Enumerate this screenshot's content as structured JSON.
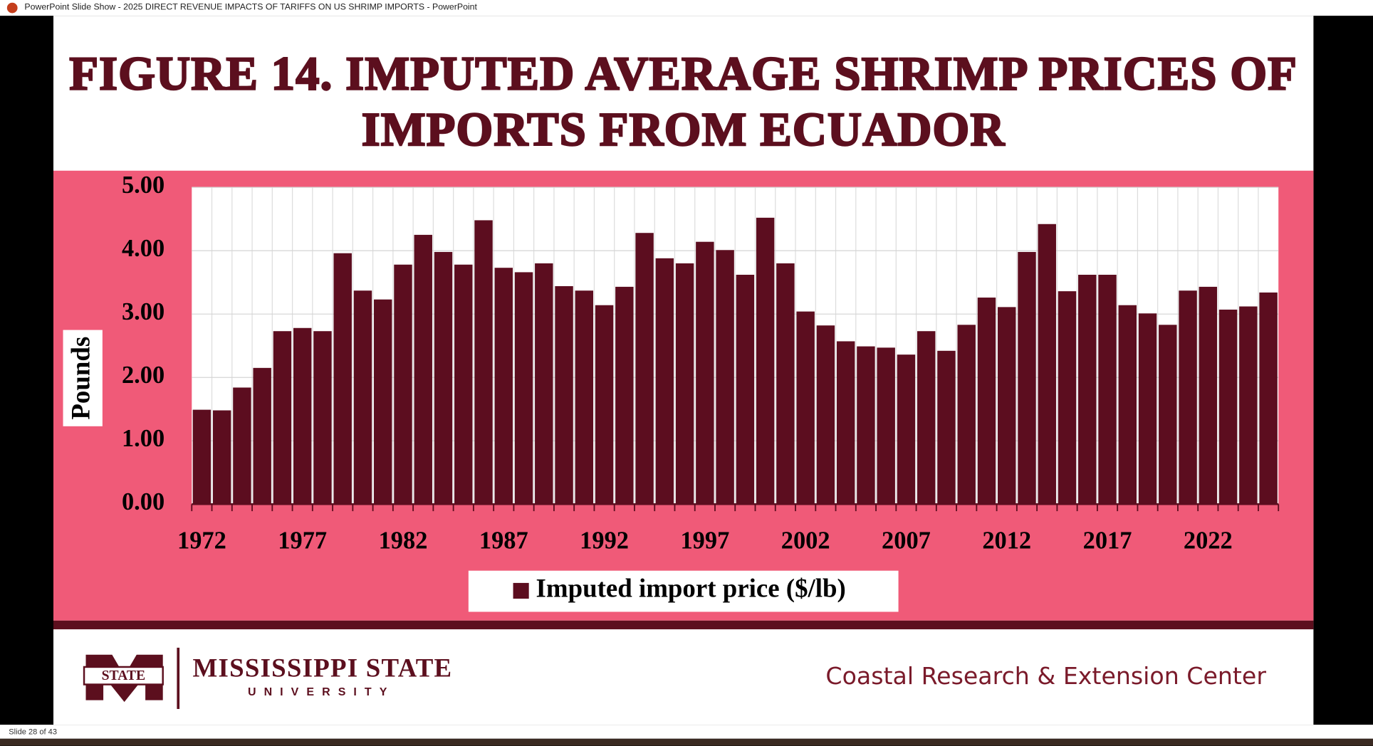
{
  "window": {
    "title": "PowerPoint Slide Show  -  2025 DIRECT REVENUE IMPACTS OF TARIFFS ON US SHRIMP IMPORTS - PowerPoint"
  },
  "status": "Slide 28 of 43",
  "footer": {
    "university": "MISSISSIPPI STATE",
    "subtitle": "UNIVERSITY",
    "badge": "STATE",
    "center": "Coastal Research & Extension Center"
  },
  "chart_data": {
    "type": "bar",
    "title": "FIGURE 14. IMPUTED AVERAGE SHRIMP PRICES OF IMPORTS FROM ECUADOR",
    "ylabel": "Pounds",
    "categories": [
      "1972",
      null,
      null,
      null,
      null,
      "1977",
      null,
      null,
      null,
      null,
      "1982",
      null,
      null,
      null,
      null,
      "1987",
      null,
      null,
      null,
      null,
      "1992",
      null,
      null,
      null,
      null,
      "1997",
      null,
      null,
      null,
      null,
      "2002",
      null,
      null,
      null,
      null,
      "2007",
      null,
      null,
      null,
      null,
      "2012",
      null,
      null,
      null,
      null,
      "2017",
      null,
      null,
      null,
      null,
      "2022",
      null,
      null,
      null
    ],
    "series": [
      {
        "name": "Imputed import price ($/lb)",
        "color": "#5c0d1f",
        "values": [
          1.49,
          1.48,
          1.84,
          2.15,
          2.73,
          2.78,
          2.73,
          3.96,
          3.37,
          3.23,
          3.78,
          4.25,
          3.98,
          3.78,
          4.48,
          3.73,
          3.66,
          3.8,
          3.44,
          3.37,
          3.14,
          3.43,
          4.28,
          3.88,
          3.8,
          4.14,
          4.01,
          3.62,
          4.52,
          3.8,
          3.04,
          2.82,
          2.57,
          2.49,
          2.47,
          2.36,
          2.73,
          2.42,
          2.83,
          3.26,
          3.11,
          3.98,
          4.42,
          3.36,
          3.62,
          3.62,
          3.14,
          3.01,
          2.83,
          3.37,
          3.43,
          3.07,
          3.12,
          3.34
        ]
      }
    ],
    "ylim": [
      0,
      5
    ],
    "yticks": [
      {
        "value": 0,
        "label": "0.00"
      },
      {
        "value": 1,
        "label": "1.00"
      },
      {
        "value": 2,
        "label": "2.00"
      },
      {
        "value": 3,
        "label": "3.00"
      },
      {
        "value": 4,
        "label": "4.00"
      },
      {
        "value": 5,
        "label": "5.00"
      }
    ],
    "grid": true,
    "legend": "bottom"
  }
}
